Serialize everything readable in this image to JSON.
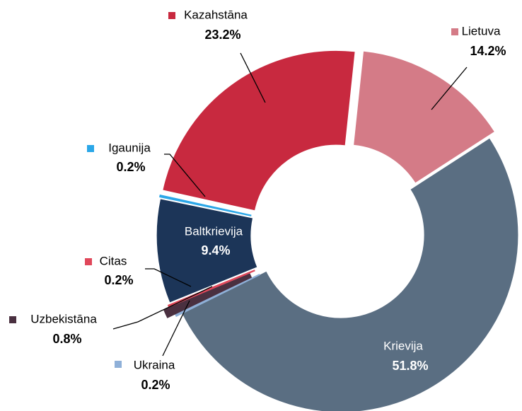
{
  "chart_data": {
    "type": "donut",
    "categories": [
      "Lietuva",
      "Krievija",
      "Ukraina",
      "Uzbekistāna",
      "Citas",
      "Baltkrievija",
      "Igaunija",
      "Kazahstāna"
    ],
    "values": [
      14.2,
      51.8,
      0.2,
      0.8,
      0.2,
      9.4,
      0.2,
      23.2
    ],
    "value_labels": [
      "14.2%",
      "51.8%",
      "0.2%",
      "0.8%",
      "0.2%",
      "9.4%",
      "0.2%",
      "23.2%"
    ],
    "colors": [
      "#d47b87",
      "#5a6e82",
      "#8fb0d8",
      "#4a3040",
      "#e0475a",
      "#1c3558",
      "#2ba7e8",
      "#c8293f"
    ]
  }
}
